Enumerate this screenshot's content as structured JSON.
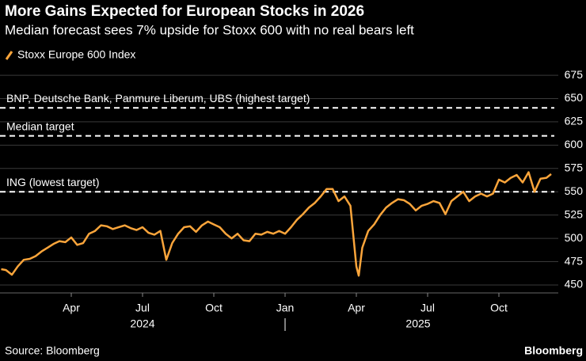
{
  "chart_data": {
    "type": "line",
    "title": "More Gains Expected for European Stocks in 2026",
    "subtitle": "Median forecast sees 7% upside for Stoxx 600 with no real bears left",
    "source": "Source: Bloomberg",
    "brand": "Bloomberg",
    "x": [
      0.05,
      0.25,
      0.5,
      0.75,
      1,
      1.25,
      1.5,
      1.75,
      2,
      2.25,
      2.5,
      2.75,
      3,
      3.25,
      3.5,
      3.75,
      4,
      4.25,
      4.5,
      4.75,
      5,
      5.25,
      5.5,
      5.75,
      6,
      6.25,
      6.5,
      6.75,
      7,
      7.25,
      7.5,
      7.75,
      8,
      8.25,
      8.5,
      8.75,
      9,
      9.25,
      9.5,
      9.75,
      10,
      10.25,
      10.5,
      10.75,
      11,
      11.25,
      11.5,
      11.75,
      12,
      12.25,
      12.5,
      12.75,
      13,
      13.25,
      13.5,
      13.75,
      14,
      14.25,
      14.5,
      14.75,
      15,
      15.1,
      15.25,
      15.5,
      15.75,
      16,
      16.25,
      16.5,
      16.75,
      17,
      17.25,
      17.5,
      17.75,
      18,
      18.25,
      18.5,
      18.75,
      19,
      19.25,
      19.5,
      19.75,
      20,
      20.25,
      20.5,
      20.75,
      21,
      21.25,
      21.5,
      21.75,
      22,
      22.25,
      22.5,
      22.75,
      23,
      23.2
    ],
    "series": [
      {
        "name": "Stoxx Europe 600 Index",
        "color": "#fba53b",
        "values": [
          467,
          466,
          461,
          470,
          477,
          478,
          481,
          486,
          490,
          494,
          497,
          496,
          501,
          493,
          495,
          505,
          508,
          514,
          513,
          510,
          512,
          514,
          511,
          509,
          512,
          506,
          504,
          508,
          477,
          495,
          505,
          512,
          513,
          507,
          514,
          518,
          515,
          512,
          505,
          500,
          505,
          498,
          497,
          505,
          504,
          507,
          505,
          508,
          505,
          512,
          520,
          526,
          533,
          538,
          545,
          553,
          553,
          540,
          545,
          535,
          470,
          460,
          490,
          508,
          515,
          525,
          533,
          538,
          542,
          541,
          537,
          530,
          535,
          537,
          540,
          538,
          526,
          540,
          545,
          550,
          540,
          545,
          548,
          545,
          548,
          563,
          560,
          565,
          568,
          560,
          571,
          550,
          564,
          565,
          569
        ]
      }
    ],
    "xlim": [
      0,
      23.5
    ],
    "xticks": [
      {
        "value": 3,
        "label": "Apr"
      },
      {
        "value": 6,
        "label": "Jul"
      },
      {
        "value": 9,
        "label": "Oct"
      },
      {
        "value": 12,
        "label": "Jan"
      },
      {
        "value": 15,
        "label": "Apr"
      },
      {
        "value": 18,
        "label": "Jul"
      },
      {
        "value": 21,
        "label": "Oct"
      }
    ],
    "year_labels": [
      {
        "value": 6,
        "label": "2024"
      },
      {
        "value": 17.6,
        "label": "2025"
      }
    ],
    "ylim": [
      441.5,
      681
    ],
    "yticks": [
      450,
      475,
      500,
      525,
      550,
      575,
      600,
      625,
      650,
      675
    ],
    "grid": true,
    "reference_lines": [
      {
        "value": 640,
        "label": "BNP, Deutsche Bank, Panmure Liberum, UBS (highest target)"
      },
      {
        "value": 610,
        "label": "Median target"
      },
      {
        "value": 550,
        "label": "ING (lowest target)"
      }
    ]
  }
}
